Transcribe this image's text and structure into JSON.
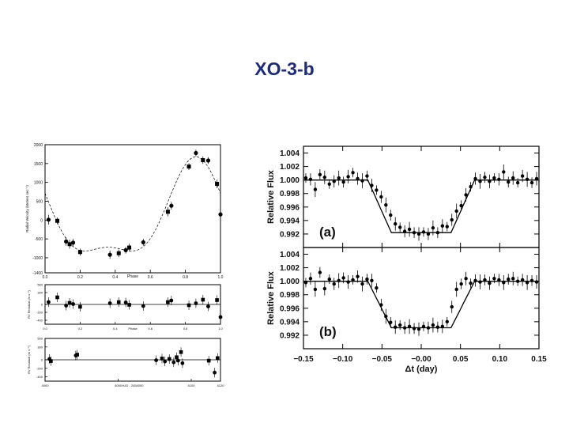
{
  "title": "XO-3-b",
  "chart_data": [
    {
      "type": "scatter",
      "panel": "radial velocity",
      "xlabel": "Phase",
      "ylabel": "Radial Velocity (Meters sec⁻¹)",
      "xlim": [
        0.0,
        1.0
      ],
      "ylim": [
        -1400,
        2000
      ],
      "xticks": [
        "0.0",
        "0.2",
        "0.4",
        "0.6",
        "0.8",
        "1.0"
      ],
      "yticks": [
        "2000",
        "1500",
        "1000",
        "500",
        "0",
        "-500",
        "-1000",
        "-1400"
      ],
      "points": [
        {
          "x": 0.02,
          "y": 10,
          "err": 130
        },
        {
          "x": 0.07,
          "y": -20,
          "err": 90
        },
        {
          "x": 0.12,
          "y": -570,
          "err": 110
        },
        {
          "x": 0.14,
          "y": -640,
          "err": 120
        },
        {
          "x": 0.16,
          "y": -600,
          "err": 100
        },
        {
          "x": 0.2,
          "y": -850,
          "err": 90
        },
        {
          "x": 0.37,
          "y": -920,
          "err": 110
        },
        {
          "x": 0.42,
          "y": -880,
          "err": 100
        },
        {
          "x": 0.46,
          "y": -800,
          "err": 90
        },
        {
          "x": 0.48,
          "y": -730,
          "err": 100
        },
        {
          "x": 0.56,
          "y": -590,
          "err": 90
        },
        {
          "x": 0.7,
          "y": 220,
          "err": 120
        },
        {
          "x": 0.72,
          "y": 380,
          "err": 100
        },
        {
          "x": 0.82,
          "y": 1420,
          "err": 90
        },
        {
          "x": 0.86,
          "y": 1780,
          "err": 90
        },
        {
          "x": 0.9,
          "y": 1590,
          "err": 100
        },
        {
          "x": 0.93,
          "y": 1580,
          "err": 90
        },
        {
          "x": 0.98,
          "y": 960,
          "err": 110
        },
        {
          "x": 1.0,
          "y": 150,
          "err": 120
        }
      ]
    },
    {
      "type": "scatter",
      "panel": "residuals vs phase",
      "xlabel": "Phase",
      "ylabel": "RV Residual (m s⁻¹)",
      "xlim": [
        0.0,
        1.0
      ],
      "ylim": [
        -500,
        500
      ],
      "xticks": [
        "0.0",
        "0.2",
        "0.4",
        "0.6",
        "0.8",
        "1.0"
      ],
      "yticks": [
        "500",
        "300",
        "0",
        "-200",
        "-400"
      ],
      "points": [
        {
          "x": 0.02,
          "y": 60
        },
        {
          "x": 0.07,
          "y": 180
        },
        {
          "x": 0.12,
          "y": -30
        },
        {
          "x": 0.14,
          "y": 40
        },
        {
          "x": 0.16,
          "y": 10
        },
        {
          "x": 0.2,
          "y": -60
        },
        {
          "x": 0.37,
          "y": 30
        },
        {
          "x": 0.42,
          "y": 60
        },
        {
          "x": 0.46,
          "y": 50
        },
        {
          "x": 0.48,
          "y": -10
        },
        {
          "x": 0.56,
          "y": -40
        },
        {
          "x": 0.7,
          "y": 60
        },
        {
          "x": 0.72,
          "y": 100
        },
        {
          "x": 0.82,
          "y": -20
        },
        {
          "x": 0.86,
          "y": 30
        },
        {
          "x": 0.9,
          "y": 120
        },
        {
          "x": 0.93,
          "y": -50
        },
        {
          "x": 0.98,
          "y": 110
        },
        {
          "x": 1.0,
          "y": -320
        }
      ]
    },
    {
      "type": "scatter",
      "panel": "residuals vs time",
      "xlabel": "HJD - 2454000",
      "ylabel": "RV Residual (m s⁻¹)",
      "xlim": [
        4000,
        4120
      ],
      "ylim": [
        -500,
        500
      ],
      "xticks": [
        "4000",
        "4050",
        "4100",
        "4120"
      ],
      "yticks": [
        "500",
        "300",
        "0",
        "-200",
        "-400"
      ],
      "points": [
        {
          "x": 4003,
          "y": 20
        },
        {
          "x": 4004,
          "y": -30
        },
        {
          "x": 4021,
          "y": 100
        },
        {
          "x": 4022,
          "y": 120
        },
        {
          "x": 4076,
          "y": -10
        },
        {
          "x": 4080,
          "y": 30
        },
        {
          "x": 4082,
          "y": -40
        },
        {
          "x": 4085,
          "y": 20
        },
        {
          "x": 4088,
          "y": -60
        },
        {
          "x": 4090,
          "y": 60
        },
        {
          "x": 4091,
          "y": -20
        },
        {
          "x": 4093,
          "y": 180
        },
        {
          "x": 4094,
          "y": -80
        },
        {
          "x": 4112,
          "y": -20
        },
        {
          "x": 4116,
          "y": -300
        },
        {
          "x": 4118,
          "y": 40
        }
      ]
    },
    {
      "type": "scatter",
      "panel": "transit (a)",
      "label": "(a)",
      "ylabel": "Relative Flux",
      "xlim": [
        -0.15,
        0.15
      ],
      "ylim": [
        0.99,
        1.005
      ],
      "yticks": [
        "1.004",
        "1.002",
        "1.000",
        "0.998",
        "0.996",
        "0.994",
        "0.992"
      ],
      "x": [
        -0.147,
        -0.141,
        -0.135,
        -0.129,
        -0.123,
        -0.117,
        -0.111,
        -0.105,
        -0.099,
        -0.093,
        -0.087,
        -0.081,
        -0.075,
        -0.069,
        -0.063,
        -0.057,
        -0.051,
        -0.045,
        -0.039,
        -0.033,
        -0.027,
        -0.021,
        -0.015,
        -0.009,
        -0.003,
        0.003,
        0.009,
        0.015,
        0.021,
        0.027,
        0.033,
        0.039,
        0.045,
        0.051,
        0.057,
        0.063,
        0.069,
        0.075,
        0.081,
        0.087,
        0.093,
        0.099,
        0.105,
        0.111,
        0.117,
        0.123,
        0.129,
        0.135,
        0.141,
        0.147
      ],
      "y": [
        1.0003,
        1.0001,
        0.9986,
        1.0008,
        1.0004,
        0.9994,
        0.9998,
        1.0003,
        0.9997,
        1.0005,
        1.0011,
        1.0002,
        0.9999,
        1.0006,
        0.9992,
        0.9985,
        0.9975,
        0.9963,
        0.9948,
        0.9935,
        0.993,
        0.9924,
        0.9927,
        0.9922,
        0.992,
        0.9923,
        0.992,
        0.9929,
        0.9922,
        0.9932,
        0.9931,
        0.9941,
        0.9954,
        0.9962,
        0.9978,
        0.999,
        1.0002,
        0.9998,
        1.0004,
        0.9998,
        1.0003,
        1.0001,
        1.0012,
        0.9997,
        1.0003,
        0.9996,
        1.0006,
        1.0001,
        0.9996,
        1.0002
      ]
    },
    {
      "type": "scatter",
      "panel": "transit (b)",
      "label": "(b)",
      "ylabel": "Relative Flux",
      "xlabel": "Δt (day)",
      "xlim": [
        -0.15,
        0.15
      ],
      "ylim": [
        0.99,
        1.005
      ],
      "xticks": [
        "−0.15",
        "−0.10",
        "−0.05",
        "−0.00",
        "0.05",
        "0.10",
        "0.15"
      ],
      "yticks": [
        "1.004",
        "1.002",
        "1.000",
        "0.998",
        "0.996",
        "0.994",
        "0.992"
      ],
      "x": [
        -0.147,
        -0.141,
        -0.135,
        -0.129,
        -0.123,
        -0.117,
        -0.111,
        -0.105,
        -0.099,
        -0.093,
        -0.087,
        -0.081,
        -0.075,
        -0.069,
        -0.063,
        -0.057,
        -0.051,
        -0.045,
        -0.039,
        -0.033,
        -0.027,
        -0.021,
        -0.015,
        -0.009,
        -0.003,
        0.003,
        0.009,
        0.015,
        0.021,
        0.027,
        0.033,
        0.039,
        0.045,
        0.051,
        0.057,
        0.063,
        0.069,
        0.075,
        0.081,
        0.087,
        0.093,
        0.099,
        0.105,
        0.111,
        0.117,
        0.123,
        0.129,
        0.135,
        0.141,
        0.147
      ],
      "y": [
        0.9998,
        1.0004,
        0.9988,
        1.0013,
        0.9989,
        1.0003,
        0.9996,
        1.0001,
        1.0005,
        0.9999,
        1.0002,
        1.0007,
        0.9996,
        1.0003,
        1.0001,
        0.999,
        0.9965,
        0.9948,
        0.9939,
        0.9932,
        0.9935,
        0.9931,
        0.9933,
        0.993,
        0.9929,
        0.9933,
        0.9931,
        0.9935,
        0.9932,
        0.9933,
        0.994,
        0.9962,
        0.9988,
        0.9996,
        1.0004,
        0.9997,
        1.0001,
        0.9999,
        1.0002,
        0.9997,
        1.0004,
        1.0002,
        0.9998,
        1.0003,
        1.0004,
        1.0,
        1.0002,
        0.9998,
        1.0001,
        0.9999
      ]
    }
  ]
}
